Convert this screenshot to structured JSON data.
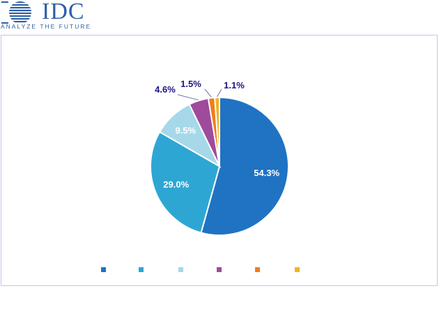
{
  "brand": {
    "logo_text": "IDC",
    "tagline": "ANALYZE THE FUTURE"
  },
  "colors": {
    "brand": "#2f5fa6",
    "frame_border": "#c7c4e6",
    "outside_label": "#1a1580"
  },
  "chart_data": {
    "type": "pie",
    "title": "",
    "start_angle_deg": 0,
    "direction": "clockwise",
    "slices": [
      {
        "value": 54.3,
        "label": "54.3%",
        "color": "#1f73c2"
      },
      {
        "value": 29.0,
        "label": "29.0%",
        "color": "#2ea6d3"
      },
      {
        "value": 9.5,
        "label": "9.5%",
        "color": "#a6d8ea"
      },
      {
        "value": 4.6,
        "label": "4.6%",
        "color": "#9e4b9b"
      },
      {
        "value": 1.5,
        "label": "1.5%",
        "color": "#f07d1d"
      },
      {
        "value": 1.1,
        "label": "1.1%",
        "color": "#f2b51d"
      }
    ],
    "legend_position": "bottom",
    "legend_labels_visible": false
  }
}
